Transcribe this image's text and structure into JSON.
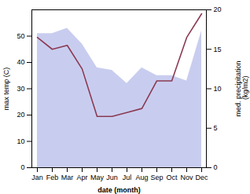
{
  "chart_data": {
    "type": "combo",
    "categories": [
      "Jan",
      "Feb",
      "Mar",
      "Apr",
      "May",
      "Jun",
      "Jul",
      "Aug",
      "Sep",
      "Oct",
      "Nov",
      "Dec"
    ],
    "series": [
      {
        "type": "area",
        "color": "#b0b8e8",
        "values": [
          51,
          51,
          53,
          47,
          38,
          37,
          32,
          38,
          35,
          35,
          33,
          52
        ]
      },
      {
        "type": "line",
        "color": "#8b3a52",
        "axis": "y2",
        "values": [
          16.5,
          15.0,
          15.5,
          12.5,
          6.5,
          6.5,
          7.0,
          7.5,
          11.0,
          11.0,
          16.5,
          19.5
        ]
      }
    ],
    "xlabel": "date (month)",
    "ylabel": "max temp (C)",
    "y2label": "med. precipitation\n (kg/m2)",
    "ylim": [
      0,
      60
    ],
    "yticks": [
      0,
      10,
      20,
      30,
      40,
      50
    ],
    "y2lim": [
      0,
      20
    ],
    "y2ticks": [
      0,
      5,
      10,
      15,
      20
    ],
    "grid": false
  }
}
